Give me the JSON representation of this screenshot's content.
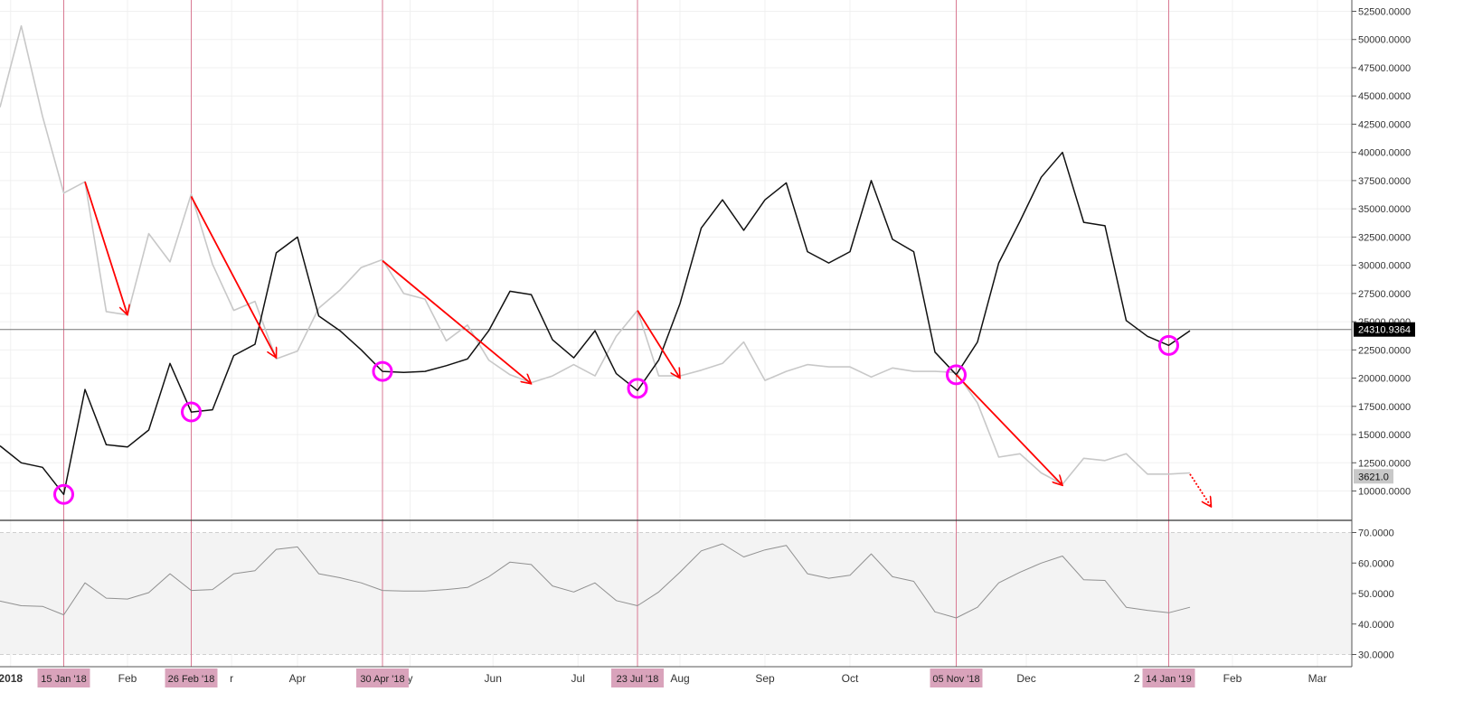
{
  "chart_data": {
    "type": "line",
    "main_pane": {
      "y_axis": {
        "range": [
          7400,
          53500
        ],
        "ticks": [
          10000,
          12500,
          15000,
          17500,
          20000,
          22500,
          25000,
          27500,
          30000,
          32500,
          35000,
          37500,
          40000,
          42500,
          45000,
          47500,
          50000,
          52500
        ],
        "tick_labels": [
          "10000.0000",
          "12500.0000",
          "15000.0000",
          "17500.0000",
          "20000.0000",
          "22500.0000",
          "25000.0000",
          "27500.0000",
          "30000.0000",
          "32500.0000",
          "35000.0000",
          "37500.0000",
          "40000.0000",
          "42500.0000",
          "45000.0000",
          "47500.0000",
          "50000.0000",
          "52500.0000"
        ]
      },
      "series": [
        {
          "color": "#111111",
          "values": [
            14000,
            12500,
            12100,
            9700,
            19000,
            14100,
            13900,
            15400,
            21300,
            17000,
            17200,
            22000,
            23000,
            31100,
            32500,
            25500,
            24200,
            22500,
            20600,
            20500,
            20600,
            21100,
            21700,
            24200,
            27700,
            27400,
            23400,
            21800,
            24200,
            20400,
            18900,
            21600,
            26600,
            33300,
            35800,
            33100,
            35800,
            37300,
            31200,
            30200,
            31200,
            37500,
            32300,
            31200,
            22300,
            20300,
            23200,
            30200,
            33900,
            37800,
            40000,
            33800,
            33500,
            25100,
            23700,
            22900,
            24200
          ]
        },
        {
          "color": "#c8c8c8",
          "values": [
            44000,
            51200,
            43200,
            36400,
            37400,
            25900,
            25600,
            32800,
            30300,
            36300,
            30100,
            26000,
            26800,
            21700,
            22400,
            26200,
            27800,
            29800,
            30500,
            27500,
            27000,
            23300,
            24700,
            21600,
            20300,
            19600,
            20200,
            21200,
            20200,
            23700,
            26000,
            20200,
            20200,
            20700,
            21300,
            23200,
            19800,
            20600,
            21200,
            21000,
            21000,
            20100,
            20900,
            20600,
            20600,
            20500,
            17800,
            13000,
            13300,
            11600,
            10600,
            12900,
            12700,
            13300,
            11500,
            11500,
            11600
          ]
        }
      ],
      "price_line": {
        "value": 24310.9364,
        "label": "24310.9364"
      },
      "grey_badge": {
        "value": 11300,
        "label": "3621.0"
      },
      "circles": [
        {
          "index": 3,
          "value": 9700
        },
        {
          "index": 9,
          "value": 17000
        },
        {
          "index": 18,
          "value": 20600
        },
        {
          "index": 30,
          "value": 19100
        },
        {
          "index": 45,
          "value": 20300
        },
        {
          "index": 55,
          "value": 22900
        }
      ],
      "arrows": [
        {
          "from": [
            4,
            37400
          ],
          "to": [
            6,
            25600
          ]
        },
        {
          "from": [
            9,
            36100
          ],
          "to": [
            13,
            21800
          ]
        },
        {
          "from": [
            18,
            30400
          ],
          "to": [
            25,
            19500
          ]
        },
        {
          "from": [
            30,
            26000
          ],
          "to": [
            32,
            20000
          ]
        },
        {
          "from": [
            45,
            20300
          ],
          "to": [
            50,
            10500
          ]
        }
      ],
      "dashed_arrow": {
        "from": [
          56,
          11500
        ],
        "to": [
          57,
          8600
        ]
      }
    },
    "indicator_pane": {
      "y_axis": {
        "range": [
          26,
          74
        ],
        "ticks": [
          30,
          40,
          50,
          60,
          70
        ],
        "tick_labels": [
          "30.0000",
          "40.0000",
          "50.0000",
          "60.0000",
          "70.0000"
        ]
      },
      "band": [
        30,
        70
      ],
      "series": [
        {
          "color": "#909090",
          "values": [
            47.5,
            46.0,
            45.8,
            43.0,
            53.5,
            48.5,
            48.2,
            50.3,
            56.5,
            51.0,
            51.3,
            56.5,
            57.5,
            64.5,
            65.3,
            56.5,
            55.2,
            53.5,
            51.0,
            50.8,
            50.8,
            51.3,
            52.0,
            55.5,
            60.3,
            59.5,
            52.5,
            50.5,
            53.5,
            47.7,
            46.0,
            50.5,
            57.0,
            64.0,
            66.3,
            62.0,
            64.3,
            65.8,
            56.5,
            55.0,
            56.0,
            63.0,
            55.5,
            54.0,
            44.0,
            42.0,
            45.5,
            53.5,
            57.0,
            60.0,
            62.3,
            54.5,
            54.3,
            45.5,
            44.5,
            43.7,
            45.5
          ]
        }
      ]
    },
    "x_axis": {
      "labels": [
        "2018",
        "Feb",
        "r",
        "Apr",
        "y",
        "Jun",
        "Jul",
        "Aug",
        "Sep",
        "Oct",
        "Dec",
        "2",
        "Feb",
        "Mar"
      ],
      "label_positions": [
        0.5,
        6.0,
        10.9,
        14.0,
        19.3,
        23.2,
        27.2,
        32.0,
        36.0,
        40.0,
        48.3,
        53.5,
        58.0,
        62.0
      ],
      "highlighted_dates": [
        {
          "label": "15 Jan '18",
          "index": 3
        },
        {
          "label": "26 Feb '18",
          "index": 9
        },
        {
          "label": "30 Apr '18",
          "index": 18
        },
        {
          "label": "23 Jul '18",
          "index": 30
        },
        {
          "label": "05 Nov '18",
          "index": 45
        },
        {
          "label": "14 Jan '19",
          "index": 55
        }
      ]
    },
    "colors": {
      "vertical_markers": "#d97a93",
      "circles": "#ff00ff",
      "arrows": "#ff0000",
      "date_badge": "#d9a3bb",
      "price_badge": "#000000",
      "grey_badge": "#c8c8c8"
    }
  }
}
